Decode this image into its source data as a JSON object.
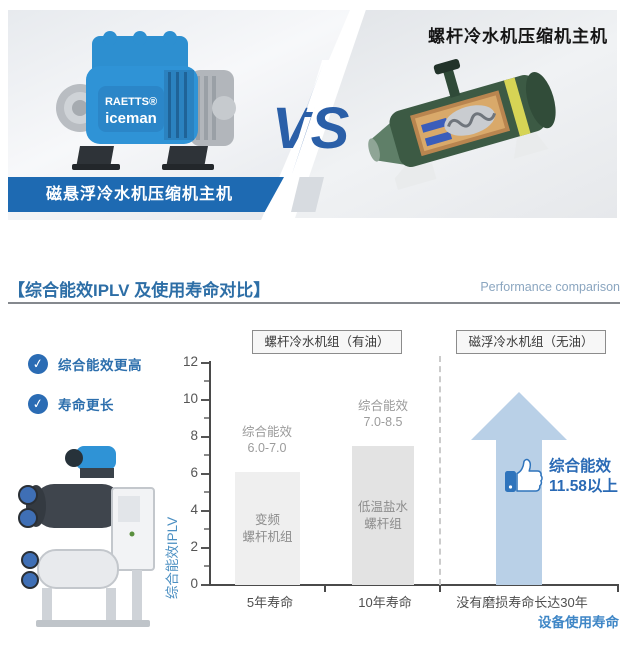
{
  "hero": {
    "left_panel_label": "磁悬浮冷水机压缩机主机",
    "right_panel_label": "螺杆冷水机压缩机主机",
    "vs_text": "VS",
    "brand_line1": "RAETTS®",
    "brand_line2": "iceman"
  },
  "section_header": {
    "title": "【综合能效IPLV 及使用寿命对比】",
    "subtitle": "Performance comparison"
  },
  "benefits": [
    {
      "label": "综合能效更高"
    },
    {
      "label": "寿命更长"
    }
  ],
  "icons": {
    "check": "✓",
    "thumbs_up": "thumbs-up-icon",
    "arrow_up": "arrow-up-shape"
  },
  "chart_data": {
    "type": "bar",
    "title": "综合能效IPLV 及使用寿命对比",
    "ylabel": "综合能效IPLV",
    "xlabel": "设备使用寿命",
    "ylim": [
      0,
      12
    ],
    "yticks": [
      0,
      2,
      4,
      6,
      8,
      10,
      12
    ],
    "grid": false,
    "legend": "none",
    "group_headers": [
      "螺杆冷水机组（有油）",
      "磁浮冷水机组（无油）"
    ],
    "categories": [
      "5年寿命",
      "10年寿命",
      "没有磨损寿命长达30年"
    ],
    "bars": [
      {
        "category": "5年寿命",
        "value": 6.1,
        "range_lines": [
          "综合能效",
          "6.0-7.0"
        ],
        "bar_lines": [
          "变频",
          "螺杆机组"
        ],
        "color": "#efefef"
      },
      {
        "category": "10年寿命",
        "value": 7.5,
        "range_lines": [
          "综合能效",
          "7.0-8.5"
        ],
        "bar_lines": [
          "低温盐水",
          "螺杆组"
        ],
        "color": "#e3e3e3"
      }
    ],
    "highlight": {
      "category": "没有磨损寿命长达30年",
      "shape": "arrow-up",
      "lines": [
        "综合能效",
        "11.58以上"
      ]
    }
  },
  "colors": {
    "banner_blue": "#1e6ab2",
    "vs_blue": "#2a5fa8",
    "title_blue": "#2d6ea6",
    "subtitle_blue": "#8ba6c0",
    "benefit_blue": "#2d6fad",
    "axis_title_blue": "#4b8fc2",
    "highlight_blue": "#2a6ab5",
    "arrow_fill": "#b9d0e7",
    "lifespan_blue": "#3e86c6",
    "bar1_fill": "#efefef",
    "bar2_fill": "#e3e3e3"
  }
}
